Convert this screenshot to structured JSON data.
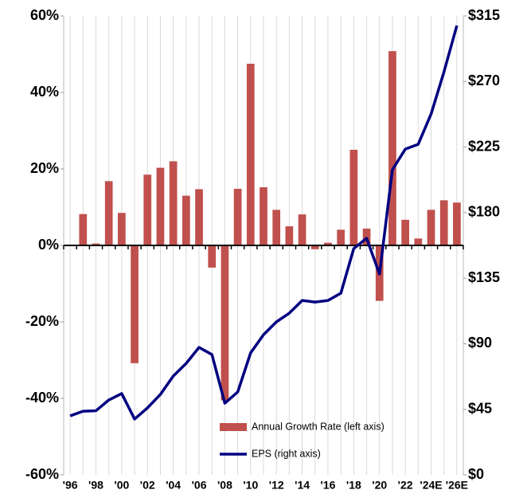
{
  "chart_data": {
    "type": "bar-line",
    "categories": [
      "'96",
      null,
      "'98",
      null,
      "'00",
      null,
      "'02",
      null,
      "'04",
      null,
      "'06",
      null,
      "'08",
      null,
      "'10",
      null,
      "'12",
      null,
      "'14",
      null,
      "'16",
      null,
      "'18",
      null,
      "'20",
      null,
      "'22",
      null,
      "'24E",
      null,
      "'26E"
    ],
    "series": [
      {
        "name": "Annual Growth Rate (left axis)",
        "type": "bar",
        "color": "#c0504d",
        "axis": "y",
        "values": [
          null,
          8.2,
          0.5,
          16.8,
          8.5,
          -30.8,
          18.5,
          20.3,
          22,
          13,
          14.7,
          -5.8,
          -40.5,
          14.8,
          47.5,
          15.2,
          9.3,
          5,
          8.1,
          -1,
          0.7,
          4.1,
          25,
          4.4,
          -14.5,
          50.8,
          6.7,
          1.8,
          9.3,
          11.8,
          11.2
        ]
      },
      {
        "name": "EPS (right axis)",
        "type": "line",
        "color": "#000080",
        "axis": "y2",
        "values": [
          40.5,
          43.7,
          44,
          51.4,
          55.8,
          38.3,
          46,
          55.2,
          67.8,
          76.5,
          87.5,
          82.6,
          49.2,
          56.9,
          83.7,
          96.2,
          105,
          111,
          119.7,
          118.6,
          119.7,
          124.7,
          155.3,
          162.4,
          137.8,
          209.4,
          223.6,
          226.9,
          247.7,
          276.6,
          308.4
        ]
      }
    ],
    "ylim": [
      -60,
      60
    ],
    "yticks": [
      {
        "value": -60,
        "label": "-60%"
      },
      {
        "value": -40,
        "label": "-40%"
      },
      {
        "value": -20,
        "label": "-20%"
      },
      {
        "value": 0,
        "label": "0%"
      },
      {
        "value": 20,
        "label": "20%"
      },
      {
        "value": 40,
        "label": "40%"
      },
      {
        "value": 60,
        "label": "60%"
      }
    ],
    "y2lim": [
      0,
      315
    ],
    "y2ticks": [
      {
        "value": 0,
        "label": "$0"
      },
      {
        "value": 45,
        "label": "$45"
      },
      {
        "value": 90,
        "label": "$90"
      },
      {
        "value": 135,
        "label": "$135"
      },
      {
        "value": 180,
        "label": "$180"
      },
      {
        "value": 225,
        "label": "$225"
      },
      {
        "value": 270,
        "label": "$270"
      },
      {
        "value": 315,
        "label": "$315"
      }
    ],
    "grid": true,
    "legend": "lower center"
  }
}
